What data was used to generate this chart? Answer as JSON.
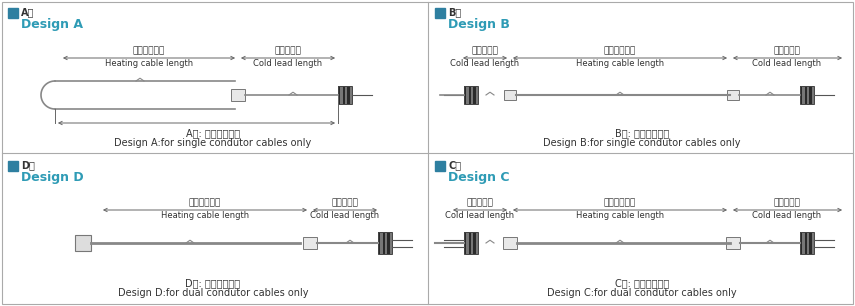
{
  "bg_color": "#ffffff",
  "teal_color": "#2e9bb5",
  "dark_color": "#333333",
  "sq_color": "#2e7fa0",
  "border_color": "#aaaaaa",
  "panels": {
    "A": {
      "label_cn": "A型",
      "label_en": "Design A",
      "desc_cn": "A型: 适用单芯电缆",
      "desc_en": "Design A:for single condutor cables only",
      "dim1_cn": "加热电缆长度",
      "dim1_en": "Heating cable length",
      "dim2_cn": "冷导线长度",
      "dim2_en": "Cold lead length"
    },
    "B": {
      "label_cn": "B型",
      "label_en": "Design B",
      "desc_cn": "B型: 适用单芯电缆",
      "desc_en": "Design B:for single condutor cables only",
      "dim1_cn": "冷导线长度",
      "dim1_en": "Cold lead length",
      "dim2_cn": "加热电缆长度",
      "dim2_en": "Heating cable length",
      "dim3_cn": "冷导线长度",
      "dim3_en": "Cold lead length"
    },
    "D": {
      "label_cn": "D型",
      "label_en": "Design D",
      "desc_cn": "D型: 适用双芯电缆",
      "desc_en": "Design D:for dual condutor cables only",
      "dim1_cn": "加热电缆长度",
      "dim1_en": "Heating cable length",
      "dim2_cn": "冷导线长度",
      "dim2_en": "Cold lead length"
    },
    "C": {
      "label_cn": "C型",
      "label_en": "Design C",
      "desc_cn": "C型: 适用双芯电缆",
      "desc_en": "Design C:for dual condutor cables only",
      "dim1_cn": "冷导线长度",
      "dim1_en": "Cold lead length",
      "dim2_cn": "加热电缆长度",
      "dim2_en": "Heating cable length",
      "dim3_cn": "冷导线长度",
      "dim3_en": "Cold lead length"
    }
  }
}
